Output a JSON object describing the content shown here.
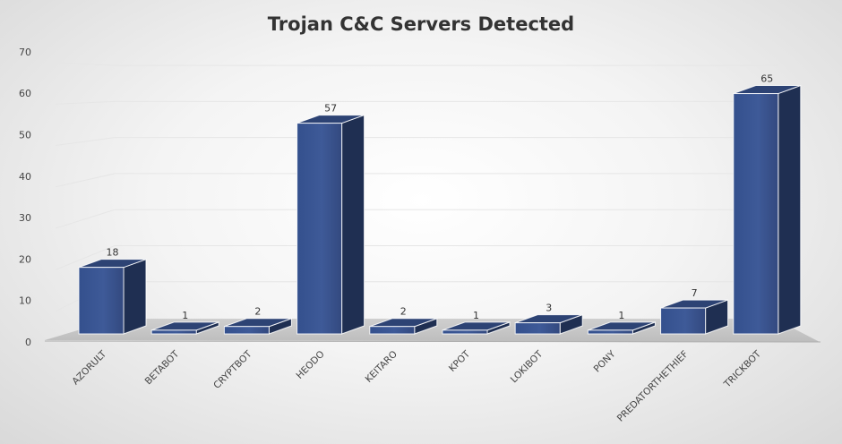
{
  "chart_data": {
    "type": "bar",
    "title": "Trojan C&C Servers Detected",
    "xlabel": "",
    "ylabel": "",
    "categories": [
      "AZORULT",
      "BETABOT",
      "CRYPTBOT",
      "HEODO",
      "KEITARO",
      "KPOT",
      "LOKIBOT",
      "PONY",
      "PREDATORTHETHIEF",
      "TRICKBOT"
    ],
    "values": [
      18,
      1,
      2,
      57,
      2,
      1,
      3,
      1,
      7,
      65
    ],
    "yticks": [
      0,
      10,
      20,
      30,
      40,
      50,
      60,
      70
    ],
    "ylim": [
      0,
      70
    ],
    "grid": true,
    "legend": "none",
    "style": "3d-column",
    "colors": {
      "bar_front": "#3a5592",
      "bar_top": "#2d4374",
      "bar_side": "#1f2f52",
      "title": "#333333"
    }
  }
}
